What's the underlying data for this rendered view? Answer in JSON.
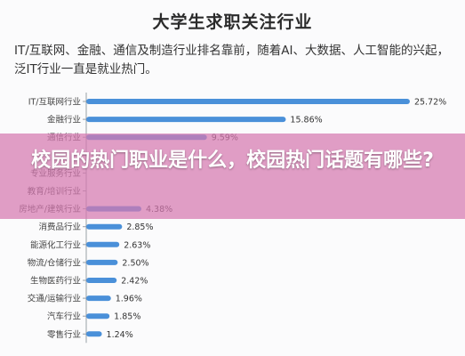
{
  "chart_data": {
    "type": "bar",
    "orientation": "horizontal",
    "title": "大学生求职关注行业",
    "subtitle": "IT/互联网、金融、通信及制造行业排名靠前，随着AI、大数据、人工智能的兴起，泛IT行业一直是就业热门。",
    "categories": [
      "IT/互联网行业",
      "金融行业",
      "通信行业",
      "",
      "专业服务行业",
      "教育/培训行业",
      "房地产/建筑行业",
      "消费品行业",
      "能源化工行业",
      "物流/仓储行业",
      "生物医药行业",
      "交通/运输行业",
      "汽车行业",
      "零售行业"
    ],
    "values": [
      25.72,
      15.86,
      9.59,
      null,
      null,
      null,
      4.38,
      2.85,
      2.63,
      2.5,
      2.42,
      1.96,
      1.85,
      1.24
    ],
    "value_labels": [
      "25.72%",
      "15.86%",
      "9.59%",
      "",
      "",
      "",
      "4.38%",
      "2.85%",
      "2.63%",
      "2.50%",
      "2.42%",
      "1.96%",
      "1.85%",
      "1.24%"
    ],
    "xlim": [
      0,
      26.5
    ],
    "bar_color": "#4a90d9",
    "grid": false
  },
  "overlay": {
    "text": "校园的热门职业是什么，校园热门话题有哪些?",
    "color": "#d678b0"
  }
}
